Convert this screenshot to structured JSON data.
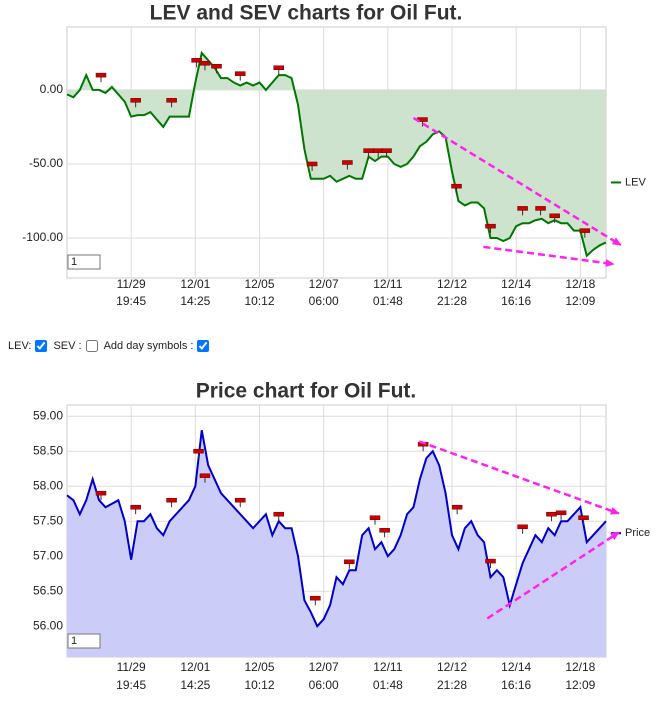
{
  "chart_data": [
    {
      "type": "area",
      "title": "LEV and SEV charts for Oil Fut.",
      "x": [
        0,
        1,
        2,
        3,
        4,
        5,
        6,
        7,
        8,
        9,
        10,
        11,
        12,
        13,
        14,
        15,
        16,
        17,
        18,
        19,
        20,
        21,
        22,
        23,
        24,
        25,
        26,
        27,
        28,
        29,
        30,
        31,
        32,
        33,
        34,
        35,
        36,
        37,
        38,
        39,
        40,
        41,
        42,
        43,
        44,
        45,
        46,
        47,
        48,
        49,
        50,
        51,
        52,
        53,
        54,
        55,
        56,
        57,
        58,
        59,
        60,
        61,
        62,
        63,
        64,
        65,
        66,
        67,
        68,
        69,
        70,
        71,
        72,
        73,
        74,
        75,
        76,
        77,
        78,
        79,
        80,
        81,
        82,
        83,
        84
      ],
      "series": [
        {
          "name": "LEV",
          "color": "#007700",
          "values": [
            -3,
            -5,
            0,
            10,
            0,
            0,
            -2,
            2,
            -3,
            -8,
            -18,
            -17,
            -17,
            -15,
            -20,
            -25,
            -18,
            -18,
            -18,
            -18,
            5,
            25,
            20,
            15,
            8,
            8,
            5,
            3,
            5,
            3,
            5,
            0,
            5,
            10,
            10,
            8,
            -10,
            -40,
            -60,
            -60,
            -60,
            -58,
            -62,
            -60,
            -58,
            -60,
            -60,
            -45,
            -48,
            -45,
            -45,
            -50,
            -52,
            -50,
            -45,
            -38,
            -35,
            -30,
            -28,
            -32,
            -55,
            -75,
            -78,
            -76,
            -76,
            -80,
            -100,
            -100,
            -102,
            -100,
            -92,
            -90,
            -90,
            -88,
            -87,
            -90,
            -88,
            -90,
            -90,
            -95,
            -95,
            -112,
            -108,
            -105,
            -103
          ]
        }
      ],
      "area_base": 0,
      "area_fill": "#cde3cd",
      "xlim": [
        0,
        84
      ],
      "ylim": [
        -127,
        42.5
      ],
      "xticks": [
        {
          "value": 10,
          "label": [
            "11/29",
            "19:45"
          ]
        },
        {
          "value": 20,
          "label": [
            "12/01",
            "14:25"
          ]
        },
        {
          "value": 30,
          "label": [
            "12/05",
            "10:12"
          ]
        },
        {
          "value": 40,
          "label": [
            "12/07",
            "06:00"
          ]
        },
        {
          "value": 50,
          "label": [
            "12/11",
            "01:48"
          ]
        },
        {
          "value": 60,
          "label": [
            "12/12",
            "21:28"
          ]
        },
        {
          "value": 70,
          "label": [
            "12/14",
            "16:16"
          ]
        },
        {
          "value": 80,
          "label": [
            "12/18",
            "12:09"
          ]
        }
      ],
      "yticks": [
        {
          "value": 0,
          "label": "0.00"
        },
        {
          "value": -50,
          "label": "-50.00"
        },
        {
          "value": -100,
          "label": "-100.00"
        }
      ],
      "grid": true,
      "legend": "right",
      "day_symbols": {
        "color": "#cc0000",
        "x": [
          5.3,
          10.7,
          16.3,
          20.2,
          21.5,
          23.3,
          27,
          33,
          38.2,
          43.7,
          47,
          48.5,
          49.8,
          55.4,
          60.7,
          66,
          71,
          73.8,
          76,
          80.7
        ],
        "values": [
          10,
          -7,
          -7,
          20,
          18,
          16,
          11,
          15,
          -50,
          -49,
          -41,
          -41,
          -41,
          -20,
          -65,
          -92,
          -80,
          -80,
          -85,
          -95
        ]
      },
      "trend_lines": {
        "color": "#ff22ee",
        "lines": [
          {
            "x": [
              54,
              86.3
            ],
            "y": [
              -18.9,
              -104.7
            ]
          },
          {
            "x": [
              64.9,
              85.2
            ],
            "y": [
              -106,
              -117.6
            ]
          }
        ]
      },
      "zoom_input": "1"
    },
    {
      "type": "area",
      "title": "Price chart for Oil Fut.",
      "x": [
        0,
        1,
        2,
        3,
        4,
        5,
        6,
        7,
        8,
        9,
        10,
        11,
        12,
        13,
        14,
        15,
        16,
        17,
        18,
        19,
        20,
        21,
        22,
        23,
        24,
        25,
        26,
        27,
        28,
        29,
        30,
        31,
        32,
        33,
        34,
        35,
        36,
        37,
        38,
        39,
        40,
        41,
        42,
        43,
        44,
        45,
        46,
        47,
        48,
        49,
        50,
        51,
        52,
        53,
        54,
        55,
        56,
        57,
        58,
        59,
        60,
        61,
        62,
        63,
        64,
        65,
        66,
        67,
        68,
        69,
        70,
        71,
        72,
        73,
        74,
        75,
        76,
        77,
        78,
        79,
        80,
        81,
        82,
        83,
        84
      ],
      "series": [
        {
          "name": "Price",
          "color": "#0000cc",
          "values": [
            57.87,
            57.8,
            57.6,
            57.8,
            58.1,
            57.8,
            57.7,
            57.75,
            57.8,
            57.5,
            56.95,
            57.5,
            57.5,
            57.6,
            57.4,
            57.3,
            57.5,
            57.6,
            57.7,
            57.8,
            58.0,
            58.8,
            58.3,
            58.1,
            57.9,
            57.8,
            57.7,
            57.6,
            57.5,
            57.4,
            57.5,
            57.6,
            57.3,
            57.5,
            57.4,
            57.4,
            57.0,
            56.37,
            56.2,
            56.0,
            56.1,
            56.3,
            56.7,
            56.6,
            56.8,
            56.8,
            57.3,
            57.4,
            57.1,
            57.2,
            57.0,
            57.1,
            57.3,
            57.6,
            57.7,
            58.1,
            58.4,
            58.5,
            58.3,
            57.9,
            57.3,
            57.1,
            57.4,
            57.5,
            57.3,
            57.2,
            56.7,
            56.8,
            56.7,
            56.3,
            56.6,
            56.9,
            57.1,
            57.3,
            57.2,
            57.4,
            57.3,
            57.5,
            57.5,
            57.6,
            57.7,
            57.2,
            57.3,
            57.4,
            57.5
          ]
        }
      ],
      "area_fill": "#ccccf8",
      "xlim": [
        0,
        84
      ],
      "ylim": [
        55.56,
        59.16
      ],
      "xticks": [
        {
          "value": 10,
          "label": [
            "11/29",
            "19:45"
          ]
        },
        {
          "value": 20,
          "label": [
            "12/01",
            "14:25"
          ]
        },
        {
          "value": 30,
          "label": [
            "12/05",
            "10:12"
          ]
        },
        {
          "value": 40,
          "label": [
            "12/07",
            "06:00"
          ]
        },
        {
          "value": 50,
          "label": [
            "12/11",
            "01:48"
          ]
        },
        {
          "value": 60,
          "label": [
            "12/12",
            "21:28"
          ]
        },
        {
          "value": 70,
          "label": [
            "12/14",
            "16:16"
          ]
        },
        {
          "value": 80,
          "label": [
            "12/18",
            "12:09"
          ]
        }
      ],
      "yticks": [
        {
          "value": 59,
          "label": "59.00"
        },
        {
          "value": 58.5,
          "label": "58.50"
        },
        {
          "value": 58,
          "label": "58.00"
        },
        {
          "value": 57.5,
          "label": "57.50"
        },
        {
          "value": 57,
          "label": "57.00"
        },
        {
          "value": 56.5,
          "label": "56.50"
        },
        {
          "value": 56,
          "label": "56.00"
        }
      ],
      "grid": true,
      "legend": "right",
      "day_symbols": {
        "color": "#cc0000",
        "x": [
          5.3,
          10.7,
          16.3,
          20.5,
          21.5,
          27,
          33,
          38.7,
          44,
          48,
          49.5,
          55.5,
          60.8,
          66,
          71,
          75.5,
          77,
          80.5
        ],
        "values": [
          57.9,
          57.7,
          57.8,
          58.5,
          58.15,
          57.8,
          57.6,
          56.4,
          56.92,
          57.55,
          57.37,
          58.6,
          57.7,
          56.93,
          57.42,
          57.6,
          57.62,
          57.55
        ]
      },
      "trend_lines": {
        "color": "#ff22ee",
        "lines": [
          {
            "x": [
              54.9,
              86
            ],
            "y": [
              58.64,
              57.61
            ]
          },
          {
            "x": [
              65.5,
              86
            ],
            "y": [
              56.11,
              57.34
            ]
          }
        ]
      },
      "zoom_input": "1"
    }
  ],
  "controls": {
    "lev_label": "LEV:",
    "lev_checked": true,
    "sev_label": "SEV :",
    "sev_checked": false,
    "day_label": "Add day symbols :",
    "day_checked": true
  }
}
